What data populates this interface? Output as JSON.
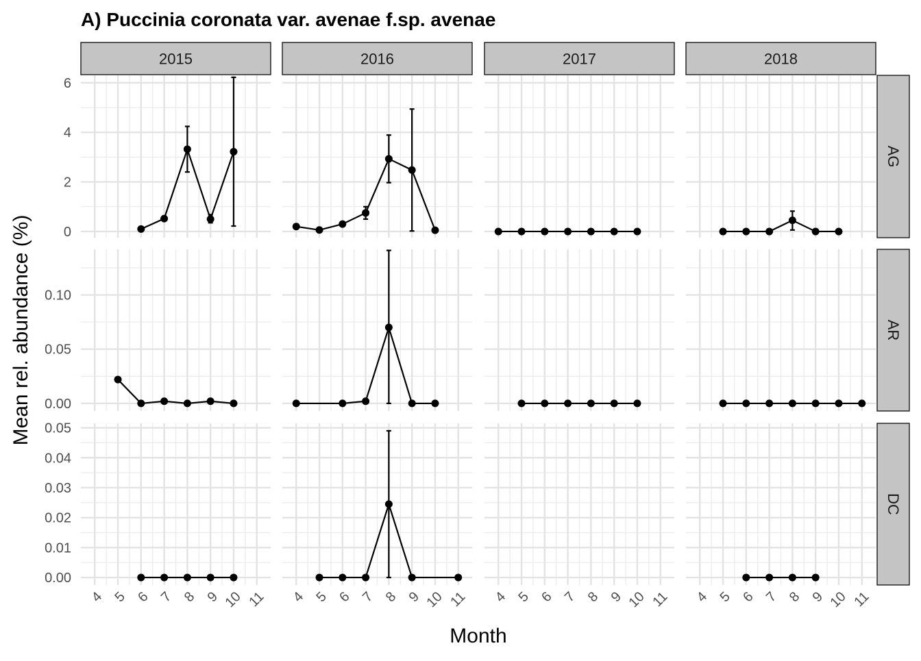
{
  "chart_data": {
    "type": "line",
    "title": "A) Puccinia coronata var. avenae f.sp. avenae",
    "xlabel": "Month",
    "ylabel": "Mean rel. abundance (%)",
    "columns": [
      "2015",
      "2016",
      "2017",
      "2018"
    ],
    "rows": [
      "AG",
      "AR",
      "DC"
    ],
    "x_ticks": [
      4,
      5,
      6,
      7,
      8,
      9,
      10,
      11
    ],
    "x_range": [
      3.4,
      11.6
    ],
    "grid": true,
    "y_axes": {
      "AG": {
        "range": [
          -0.25,
          6.3
        ],
        "ticks": [
          0,
          2,
          4,
          6
        ],
        "tick_labels": [
          "0",
          "2",
          "4",
          "6"
        ]
      },
      "AR": {
        "range": [
          -0.007,
          0.142
        ],
        "ticks": [
          0.0,
          0.05,
          0.1
        ],
        "tick_labels": [
          "0.00",
          "0.05",
          "0.10"
        ]
      },
      "DC": {
        "range": [
          -0.0025,
          0.0515
        ],
        "ticks": [
          0.0,
          0.01,
          0.02,
          0.03,
          0.04,
          0.05
        ],
        "tick_labels": [
          "0.00",
          "0.01",
          "0.02",
          "0.03",
          "0.04",
          "0.05"
        ]
      }
    },
    "panels": [
      {
        "year": "2015",
        "site": "AG",
        "points": [
          {
            "x": 6,
            "y": 0.1
          },
          {
            "x": 7,
            "y": 0.52
          },
          {
            "x": 8,
            "y": 3.32,
            "lo": 2.4,
            "hi": 4.24
          },
          {
            "x": 9,
            "y": 0.5,
            "lo": 0.35,
            "hi": 0.68
          },
          {
            "x": 10,
            "y": 3.22,
            "lo": 0.22,
            "hi": 6.22
          }
        ]
      },
      {
        "year": "2016",
        "site": "AG",
        "points": [
          {
            "x": 4,
            "y": 0.2
          },
          {
            "x": 5,
            "y": 0.06
          },
          {
            "x": 6,
            "y": 0.3
          },
          {
            "x": 7,
            "y": 0.75,
            "lo": 0.5,
            "hi": 1.0
          },
          {
            "x": 8,
            "y": 2.93,
            "lo": 1.97,
            "hi": 3.89
          },
          {
            "x": 9,
            "y": 2.48,
            "lo": 0.02,
            "hi": 4.94
          },
          {
            "x": 10,
            "y": 0.05
          }
        ]
      },
      {
        "year": "2017",
        "site": "AG",
        "points": [
          {
            "x": 4,
            "y": 0
          },
          {
            "x": 5,
            "y": 0
          },
          {
            "x": 6,
            "y": 0
          },
          {
            "x": 7,
            "y": 0
          },
          {
            "x": 8,
            "y": 0
          },
          {
            "x": 9,
            "y": 0
          },
          {
            "x": 10,
            "y": 0
          }
        ]
      },
      {
        "year": "2018",
        "site": "AG",
        "points": [
          {
            "x": 5,
            "y": 0
          },
          {
            "x": 6,
            "y": 0
          },
          {
            "x": 7,
            "y": 0
          },
          {
            "x": 8,
            "y": 0.45,
            "lo": 0.06,
            "hi": 0.82
          },
          {
            "x": 9,
            "y": 0
          },
          {
            "x": 10,
            "y": 0
          }
        ]
      },
      {
        "year": "2015",
        "site": "AR",
        "points": [
          {
            "x": 5,
            "y": 0.022
          },
          {
            "x": 6,
            "y": 0
          },
          {
            "x": 7,
            "y": 0.002
          },
          {
            "x": 8,
            "y": 0
          },
          {
            "x": 9,
            "y": 0.002
          },
          {
            "x": 10,
            "y": 0
          }
        ]
      },
      {
        "year": "2016",
        "site": "AR",
        "points": [
          {
            "x": 4,
            "y": 0
          },
          {
            "x": 6,
            "y": 0
          },
          {
            "x": 7,
            "y": 0.002
          },
          {
            "x": 8,
            "y": 0.07,
            "lo": 0.0,
            "hi": 0.141
          },
          {
            "x": 9,
            "y": 0
          },
          {
            "x": 10,
            "y": 0
          }
        ]
      },
      {
        "year": "2017",
        "site": "AR",
        "points": [
          {
            "x": 5,
            "y": 0
          },
          {
            "x": 6,
            "y": 0
          },
          {
            "x": 7,
            "y": 0
          },
          {
            "x": 8,
            "y": 0
          },
          {
            "x": 9,
            "y": 0
          },
          {
            "x": 10,
            "y": 0
          }
        ]
      },
      {
        "year": "2018",
        "site": "AR",
        "points": [
          {
            "x": 5,
            "y": 0
          },
          {
            "x": 6,
            "y": 0
          },
          {
            "x": 7,
            "y": 0
          },
          {
            "x": 8,
            "y": 0
          },
          {
            "x": 9,
            "y": 0
          },
          {
            "x": 10,
            "y": 0
          },
          {
            "x": 11,
            "y": 0
          }
        ]
      },
      {
        "year": "2015",
        "site": "DC",
        "points": [
          {
            "x": 6,
            "y": 0
          },
          {
            "x": 7,
            "y": 0
          },
          {
            "x": 8,
            "y": 0
          },
          {
            "x": 9,
            "y": 0
          },
          {
            "x": 10,
            "y": 0
          }
        ]
      },
      {
        "year": "2016",
        "site": "DC",
        "points": [
          {
            "x": 5,
            "y": 0
          },
          {
            "x": 6,
            "y": 0
          },
          {
            "x": 7,
            "y": 0
          },
          {
            "x": 8,
            "y": 0.0245,
            "lo": 0.0,
            "hi": 0.049
          },
          {
            "x": 9,
            "y": 0
          },
          {
            "x": 11,
            "y": 0
          }
        ]
      },
      {
        "year": "2017",
        "site": "DC",
        "points": []
      },
      {
        "year": "2018",
        "site": "DC",
        "points": [
          {
            "x": 6,
            "y": 0
          },
          {
            "x": 7,
            "y": 0
          },
          {
            "x": 8,
            "y": 0
          },
          {
            "x": 9,
            "y": 0
          }
        ]
      }
    ]
  }
}
